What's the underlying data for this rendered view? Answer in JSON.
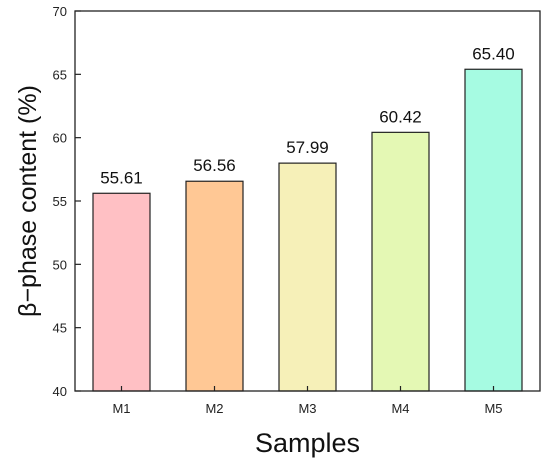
{
  "chart_data": {
    "type": "bar",
    "title": "",
    "xlabel": "Samples",
    "ylabel": "β−phase content (%)",
    "ylim": [
      40,
      70
    ],
    "yticks": [
      40,
      45,
      50,
      55,
      60,
      65,
      70
    ],
    "categories": [
      "M1",
      "M2",
      "M3",
      "M4",
      "M5"
    ],
    "values": [
      55.61,
      56.56,
      57.99,
      60.42,
      65.4
    ],
    "value_labels": [
      "55.61",
      "56.56",
      "57.99",
      "60.42",
      "65.40"
    ],
    "colors": [
      "#ffc0c4",
      "#ffc895",
      "#f6f0b8",
      "#e4f8b4",
      "#a6fbe2"
    ],
    "edge_color": "#222222",
    "grid": false,
    "legend": "none"
  }
}
